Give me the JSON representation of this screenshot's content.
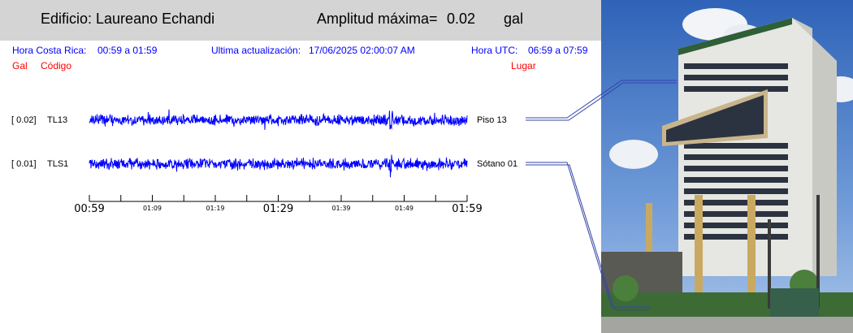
{
  "header": {
    "building": "Edificio: Laureano Echandi",
    "amp_label": "Amplitud máxima=",
    "amp_value": "0.02",
    "amp_unit": "gal"
  },
  "info": {
    "cr_label": "Hora Costa Rica:",
    "cr_range": "00:59 a 01:59",
    "update_label": "Ultima actualización:",
    "update_value": "17/06/2025 02:00:07 AM",
    "utc_label": "Hora UTC:",
    "utc_range": "06:59 a 07:59"
  },
  "columns": {
    "gal": "Gal",
    "code": "Código",
    "place": "Lugar"
  },
  "traces": [
    {
      "amp": "[   0.02]",
      "code": "TL13",
      "place": "Piso 13",
      "color": "#0000ff"
    },
    {
      "amp": "[   0.01]",
      "code": "TLS1",
      "place": "Sótano 01",
      "color": "#0000ff"
    }
  ],
  "time_axis": {
    "major": [
      "00:59",
      "01:29",
      "01:59"
    ],
    "minor": [
      "01:09",
      "01:19",
      "01:39",
      "01:49"
    ]
  },
  "colors": {
    "header_bg": "#d4d4d4",
    "info_text": "#0000ff",
    "column_text": "#ff0000",
    "trace": "#0000ff"
  }
}
